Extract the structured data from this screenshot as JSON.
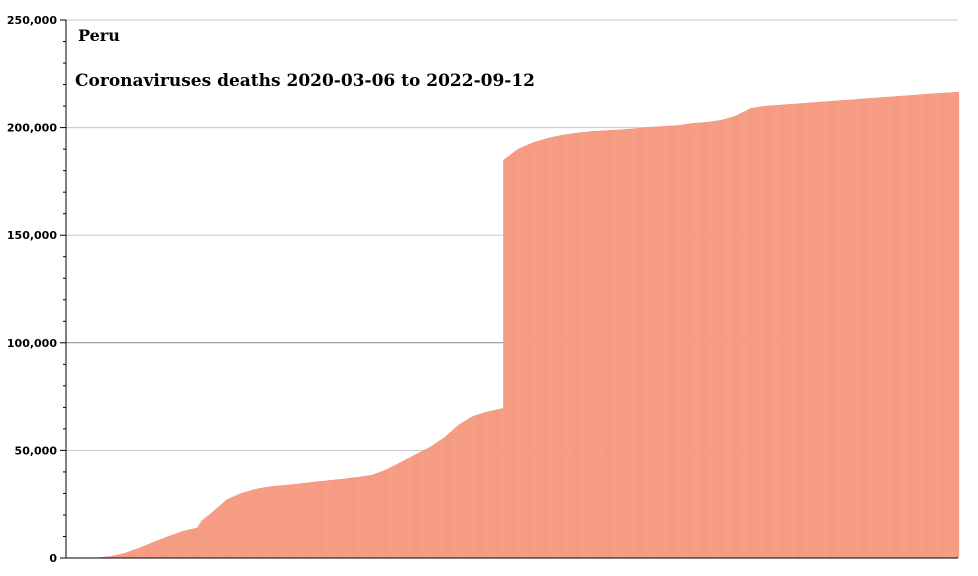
{
  "chart_data": {
    "type": "bar",
    "title": "Coronaviruses deaths 2020-03-06 to 2022-09-12",
    "subtitle": "Peru",
    "xlabel": "",
    "ylabel": "",
    "ylim": [
      0,
      250000
    ],
    "yticks": [
      0,
      50000,
      100000,
      150000,
      200000,
      250000
    ],
    "ytick_labels": [
      "0",
      "50,000",
      "100,000",
      "150,000",
      "200,000",
      "250,000"
    ],
    "grid": true,
    "legend": "none",
    "bar_color": "#f9a48a",
    "bar_stroke": "#ee8870",
    "x_start": "2020-03-06",
    "x_end": "2022-09-12",
    "series": [
      {
        "x": [
          "2020-03-06",
          "2020-03-21",
          "2020-04-05",
          "2020-04-20",
          "2020-05-05",
          "2020-05-20",
          "2020-06-04",
          "2020-06-19",
          "2020-07-04",
          "2020-07-19",
          "2020-07-24",
          "2020-08-03",
          "2020-08-18",
          "2020-09-02",
          "2020-09-17",
          "2020-10-02",
          "2020-10-17",
          "2020-11-01",
          "2020-11-16",
          "2020-12-01",
          "2020-12-16",
          "2020-12-31",
          "2021-01-15",
          "2021-01-30",
          "2021-02-14",
          "2021-03-01",
          "2021-03-16",
          "2021-03-31",
          "2021-04-15",
          "2021-04-30",
          "2021-05-15",
          "2021-05-30",
          "2021-05-31",
          "2021-06-15",
          "2021-06-30",
          "2021-07-15",
          "2021-07-30",
          "2021-08-14",
          "2021-08-29",
          "2021-09-13",
          "2021-09-28",
          "2021-10-13",
          "2021-10-28",
          "2021-11-12",
          "2021-11-27",
          "2021-12-12",
          "2021-12-27",
          "2022-01-11",
          "2022-01-26",
          "2022-02-10",
          "2022-02-25",
          "2022-03-12",
          "2022-03-27",
          "2022-04-11",
          "2022-04-26",
          "2022-05-11",
          "2022-05-26",
          "2022-06-10",
          "2022-06-25",
          "2022-07-10",
          "2022-07-25",
          "2022-08-09",
          "2022-08-24",
          "2022-09-12"
        ],
        "values": [
          0,
          0,
          100,
          700,
          2200,
          4600,
          7400,
          10000,
          12400,
          14000,
          17500,
          21000,
          27000,
          30000,
          32000,
          33200,
          33800,
          34500,
          35300,
          36000,
          36700,
          37500,
          38500,
          41000,
          44500,
          48000,
          51500,
          56000,
          62000,
          66000,
          68000,
          69500,
          185000,
          190000,
          193000,
          195000,
          196500,
          197500,
          198200,
          198600,
          199000,
          199500,
          200200,
          200600,
          201000,
          202000,
          202500,
          203500,
          205500,
          209000,
          210000,
          210500,
          211000,
          211500,
          212000,
          212500,
          213000,
          213500,
          214000,
          214500,
          215000,
          215500,
          216000,
          216500
        ]
      }
    ]
  }
}
